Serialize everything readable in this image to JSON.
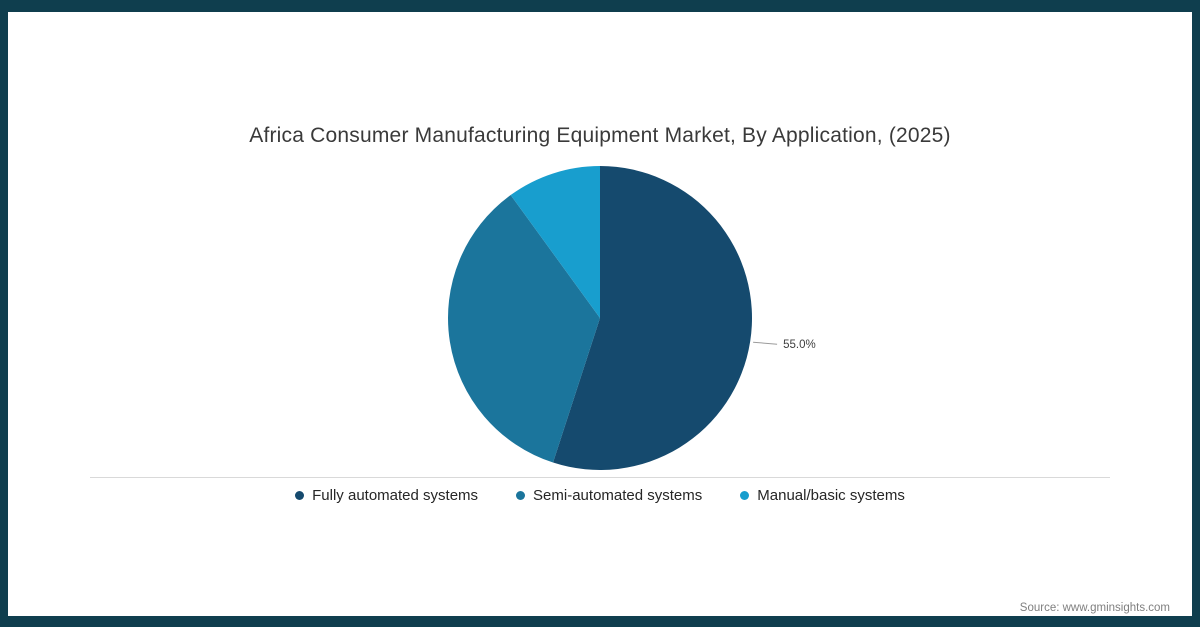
{
  "chart_data": {
    "type": "pie",
    "title": "Africa Consumer Manufacturing Equipment Market, By Application, (2025)",
    "categories": [
      "Fully automated systems",
      "Semi-automated systems",
      "Manual/basic systems"
    ],
    "values": [
      55.0,
      35.0,
      10.0
    ],
    "colors": [
      "#154a6e",
      "#1b759c",
      "#189ece"
    ],
    "data_labels": [
      "55.0%",
      "",
      ""
    ],
    "start_angle_deg": 0,
    "direction": "clockwise",
    "legend_position": "bottom"
  },
  "source": "Source: www.gminsights.com",
  "frame_color": "#0f3e4e",
  "leader_line_color": "#9b9b9b"
}
